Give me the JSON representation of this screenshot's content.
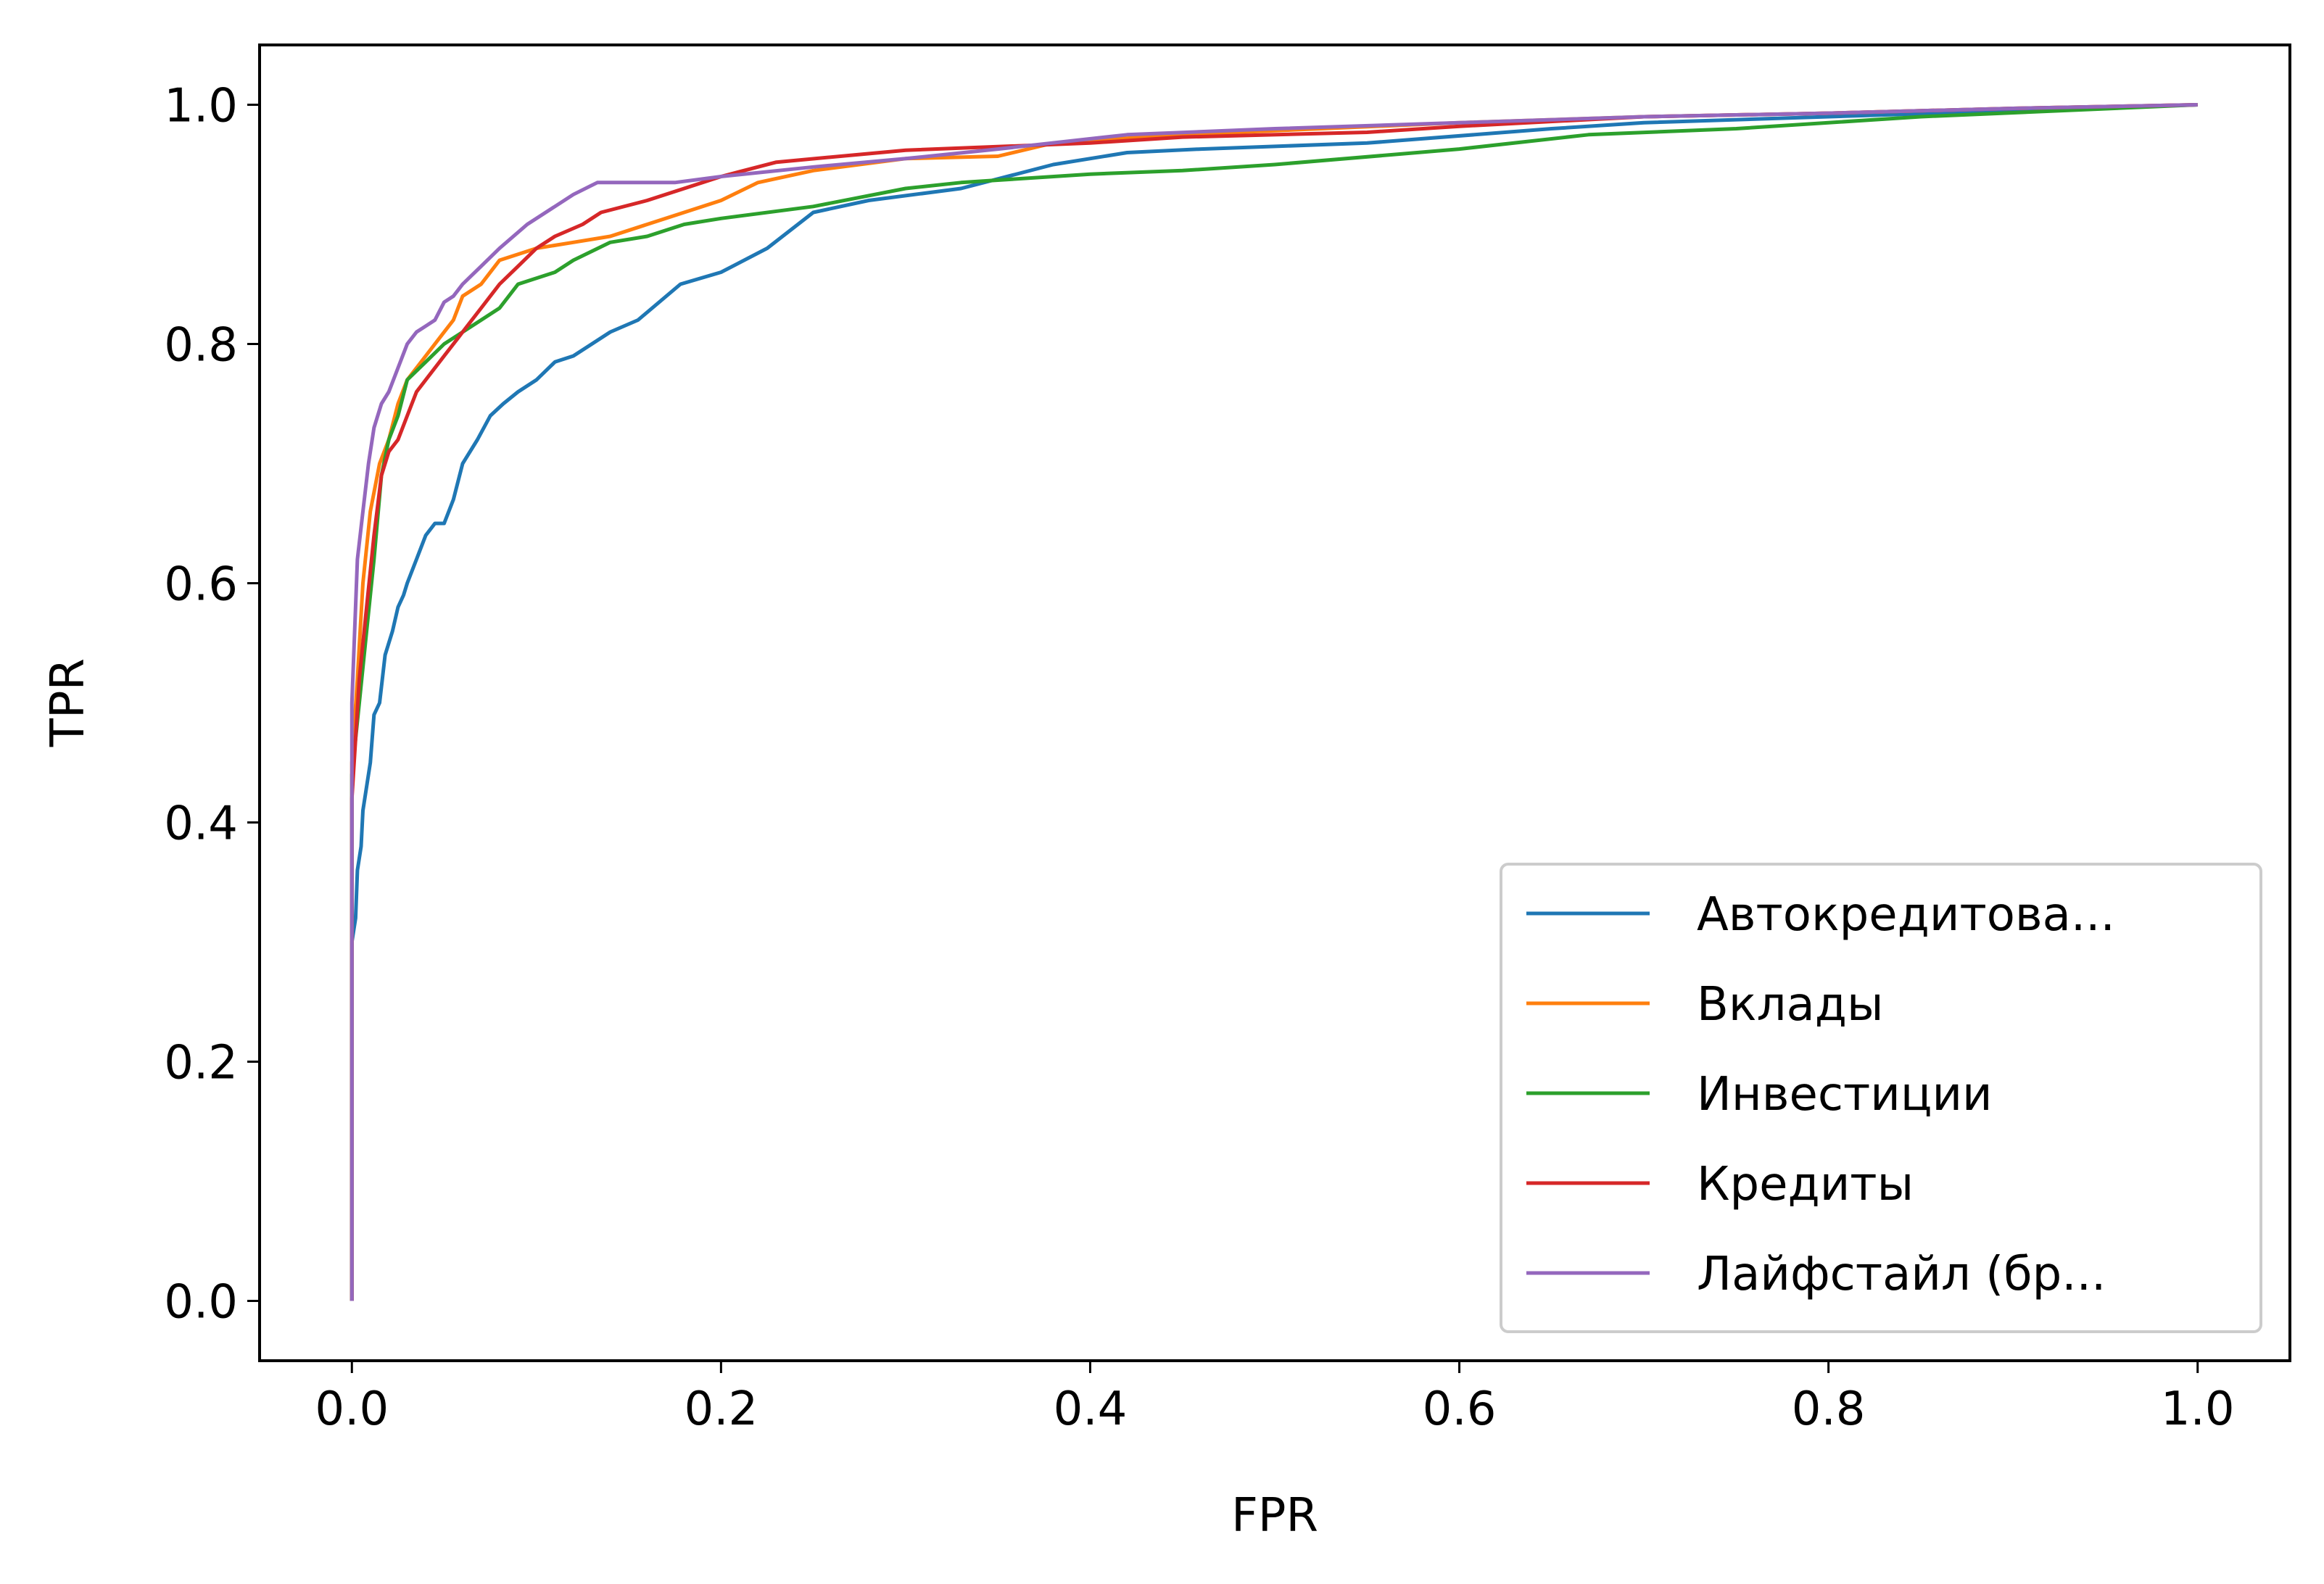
{
  "chart_data": {
    "type": "line",
    "title": "",
    "xlabel": "FPR",
    "ylabel": "TPR",
    "xlim": [
      -0.05,
      1.05
    ],
    "ylim": [
      -0.05,
      1.05
    ],
    "xticks": [
      0.0,
      0.2,
      0.4,
      0.6,
      0.8,
      1.0
    ],
    "yticks": [
      0.0,
      0.2,
      0.4,
      0.6,
      0.8,
      1.0
    ],
    "xtick_labels": [
      "0.0",
      "0.2",
      "0.4",
      "0.6",
      "0.8",
      "1.0"
    ],
    "ytick_labels": [
      "0.0",
      "0.2",
      "0.4",
      "0.6",
      "0.8",
      "1.0"
    ],
    "grid": false,
    "legend_position": "lower-right",
    "series": [
      {
        "name": "Автокредитова...",
        "color": "#1f77b4",
        "x": [
          0.0,
          0.0,
          0.002,
          0.003,
          0.005,
          0.006,
          0.008,
          0.01,
          0.012,
          0.015,
          0.018,
          0.022,
          0.025,
          0.028,
          0.03,
          0.035,
          0.04,
          0.045,
          0.05,
          0.055,
          0.06,
          0.068,
          0.075,
          0.082,
          0.09,
          0.1,
          0.11,
          0.12,
          0.13,
          0.14,
          0.155,
          0.178,
          0.2,
          0.225,
          0.25,
          0.28,
          0.33,
          0.38,
          0.42,
          0.46,
          0.55,
          0.65,
          0.7,
          0.8,
          0.9,
          1.0
        ],
        "y": [
          0.0,
          0.3,
          0.32,
          0.36,
          0.38,
          0.41,
          0.43,
          0.45,
          0.49,
          0.5,
          0.54,
          0.56,
          0.58,
          0.59,
          0.6,
          0.62,
          0.64,
          0.65,
          0.65,
          0.67,
          0.7,
          0.72,
          0.74,
          0.75,
          0.76,
          0.77,
          0.785,
          0.79,
          0.8,
          0.81,
          0.82,
          0.85,
          0.86,
          0.88,
          0.91,
          0.92,
          0.93,
          0.95,
          0.96,
          0.963,
          0.968,
          0.98,
          0.985,
          0.99,
          0.995,
          1.0
        ]
      },
      {
        "name": "Вклады",
        "color": "#ff7f0e",
        "x": [
          0.0,
          0.0,
          0.003,
          0.006,
          0.01,
          0.015,
          0.02,
          0.025,
          0.03,
          0.035,
          0.04,
          0.045,
          0.05,
          0.055,
          0.06,
          0.07,
          0.08,
          0.09,
          0.1,
          0.12,
          0.14,
          0.16,
          0.18,
          0.2,
          0.22,
          0.25,
          0.3,
          0.35,
          0.38,
          0.45,
          0.6,
          0.7,
          0.8,
          0.9,
          1.0
        ],
        "y": [
          0.0,
          0.45,
          0.52,
          0.6,
          0.66,
          0.7,
          0.72,
          0.75,
          0.77,
          0.78,
          0.79,
          0.8,
          0.81,
          0.82,
          0.84,
          0.85,
          0.87,
          0.875,
          0.88,
          0.885,
          0.89,
          0.9,
          0.91,
          0.92,
          0.935,
          0.945,
          0.955,
          0.957,
          0.968,
          0.975,
          0.985,
          0.99,
          0.993,
          0.997,
          1.0
        ]
      },
      {
        "name": "Инвестиции",
        "color": "#2ca02c",
        "x": [
          0.0,
          0.0,
          0.004,
          0.008,
          0.012,
          0.016,
          0.02,
          0.025,
          0.03,
          0.04,
          0.05,
          0.06,
          0.07,
          0.08,
          0.09,
          0.11,
          0.12,
          0.14,
          0.16,
          0.18,
          0.2,
          0.25,
          0.3,
          0.33,
          0.4,
          0.45,
          0.5,
          0.6,
          0.67,
          0.75,
          0.85,
          1.0
        ],
        "y": [
          0.0,
          0.44,
          0.5,
          0.56,
          0.62,
          0.69,
          0.72,
          0.74,
          0.77,
          0.785,
          0.8,
          0.81,
          0.82,
          0.83,
          0.85,
          0.86,
          0.87,
          0.885,
          0.89,
          0.9,
          0.905,
          0.915,
          0.93,
          0.935,
          0.942,
          0.945,
          0.95,
          0.963,
          0.975,
          0.98,
          0.99,
          1.0
        ]
      },
      {
        "name": "Кредиты",
        "color": "#d62728",
        "x": [
          0.0,
          0.0,
          0.004,
          0.008,
          0.012,
          0.016,
          0.02,
          0.025,
          0.03,
          0.035,
          0.04,
          0.045,
          0.05,
          0.055,
          0.06,
          0.065,
          0.07,
          0.08,
          0.09,
          0.1,
          0.11,
          0.125,
          0.135,
          0.16,
          0.18,
          0.2,
          0.23,
          0.3,
          0.4,
          0.45,
          0.55,
          0.6,
          0.7,
          0.8,
          0.9,
          1.0
        ],
        "y": [
          0.0,
          0.42,
          0.52,
          0.58,
          0.64,
          0.69,
          0.71,
          0.72,
          0.74,
          0.76,
          0.77,
          0.78,
          0.79,
          0.8,
          0.81,
          0.82,
          0.83,
          0.85,
          0.865,
          0.88,
          0.89,
          0.9,
          0.91,
          0.92,
          0.93,
          0.94,
          0.952,
          0.962,
          0.968,
          0.973,
          0.977,
          0.982,
          0.99,
          0.993,
          0.997,
          1.0
        ]
      },
      {
        "name": "Лайфстайл (бр...",
        "color": "#9467bd",
        "x": [
          0.0,
          0.0,
          0.003,
          0.006,
          0.009,
          0.012,
          0.016,
          0.02,
          0.025,
          0.03,
          0.035,
          0.04,
          0.045,
          0.05,
          0.055,
          0.06,
          0.07,
          0.08,
          0.095,
          0.11,
          0.12,
          0.133,
          0.16,
          0.175,
          0.2,
          0.25,
          0.3,
          0.35,
          0.42,
          0.5,
          0.6,
          0.7,
          0.8,
          0.9,
          1.0
        ],
        "y": [
          0.0,
          0.5,
          0.62,
          0.66,
          0.7,
          0.73,
          0.75,
          0.76,
          0.78,
          0.8,
          0.81,
          0.815,
          0.82,
          0.835,
          0.84,
          0.85,
          0.865,
          0.88,
          0.9,
          0.915,
          0.925,
          0.935,
          0.935,
          0.935,
          0.94,
          0.948,
          0.955,
          0.963,
          0.975,
          0.98,
          0.985,
          0.99,
          0.993,
          0.997,
          1.0
        ]
      }
    ]
  }
}
